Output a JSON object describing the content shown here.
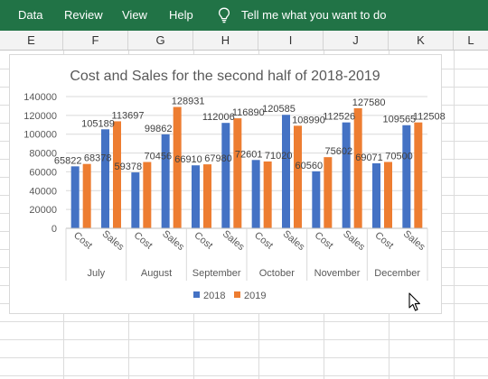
{
  "ribbon": {
    "tabs": [
      {
        "label": "Data"
      },
      {
        "label": "Review"
      },
      {
        "label": "View"
      },
      {
        "label": "Help"
      }
    ],
    "tell_me": "Tell me what you want to do",
    "icon": "lightbulb-icon"
  },
  "sheet": {
    "columns": [
      "E",
      "F",
      "G",
      "H",
      "I",
      "J",
      "K",
      "L"
    ]
  },
  "chart_data": {
    "type": "bar",
    "title": "Cost and Sales for the second half of 2018-2019",
    "groups": [
      "July",
      "August",
      "September",
      "October",
      "November",
      "December"
    ],
    "categories": [
      "Cost",
      "Sales",
      "Cost",
      "Sales",
      "Cost",
      "Sales",
      "Cost",
      "Sales",
      "Cost",
      "Sales",
      "Cost",
      "Sales"
    ],
    "series": [
      {
        "name": "2018",
        "color": "#4472c4",
        "values": [
          65822,
          105189,
          59378,
          99862,
          66910,
          112006,
          72601,
          120585,
          60560,
          112526,
          69071,
          109565
        ]
      },
      {
        "name": "2019",
        "color": "#ed7d31",
        "values": [
          68378,
          113697,
          70456,
          128931,
          67980,
          116890,
          71020,
          108990,
          75602,
          127580,
          70500,
          112508
        ]
      }
    ],
    "yticks": [
      "0",
      "20000",
      "40000",
      "60000",
      "80000",
      "100000",
      "120000",
      "140000"
    ],
    "ylim": [
      0,
      140000
    ],
    "legend_position": "bottom"
  }
}
